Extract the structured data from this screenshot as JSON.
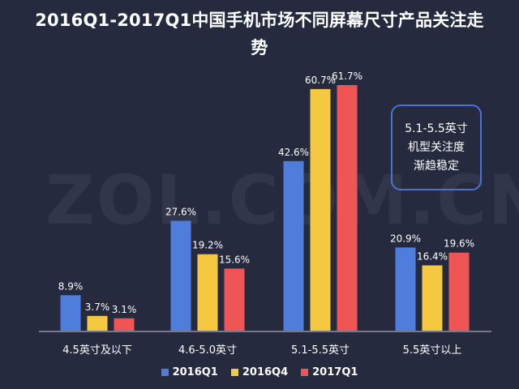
{
  "title": "2016Q1-2017Q1中国手机市场不同屏幕尺寸产品关注走势",
  "watermark": "ZOL.COM.CN",
  "callout": {
    "lines": [
      "5.1-5.5英寸",
      "机型关注度",
      "渐趋稳定"
    ]
  },
  "colors": {
    "background": "#262a3f",
    "axis": "#c8c8d0",
    "2016Q1": "#4f7ddc",
    "2016Q4": "#f5c842",
    "2017Q1": "#ef5555"
  },
  "chart_data": {
    "type": "bar",
    "title": "2016Q1-2017Q1中国手机市场不同屏幕尺寸产品关注走势",
    "categories": [
      "4.5英寸及以下",
      "4.6-5.0英寸",
      "5.1-5.5英寸",
      "5.5英寸以上"
    ],
    "series": [
      {
        "name": "2016Q1",
        "values": [
          8.9,
          27.6,
          42.6,
          20.9
        ],
        "labels": [
          "8.9%",
          "27.6%",
          "42.6%",
          "20.9%"
        ]
      },
      {
        "name": "2016Q4",
        "values": [
          3.7,
          19.2,
          60.7,
          16.4
        ],
        "labels": [
          "3.7%",
          "19.2%",
          "60.7%",
          "16.4%"
        ]
      },
      {
        "name": "2017Q1",
        "values": [
          3.1,
          15.6,
          61.7,
          19.6
        ],
        "labels": [
          "3.1%",
          "15.6%",
          "61.7%",
          "19.6%"
        ]
      }
    ],
    "ylim": [
      0,
      61.7
    ],
    "grid": false,
    "legend": "bottom"
  }
}
